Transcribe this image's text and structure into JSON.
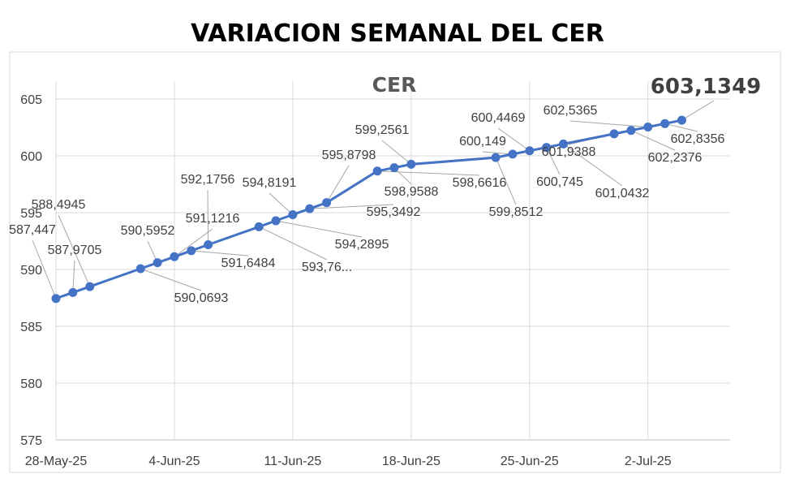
{
  "page_title": "VARIACION SEMANAL DEL CER",
  "chart_data": {
    "type": "line",
    "title": "CER",
    "xlabel": "",
    "ylabel": "",
    "ylim": [
      575,
      605
    ],
    "y_ticks": [
      575,
      580,
      585,
      590,
      595,
      600,
      605
    ],
    "x_ticks": [
      {
        "label": "28-May-25",
        "day": 0
      },
      {
        "label": "4-Jun-25",
        "day": 7
      },
      {
        "label": "11-Jun-25",
        "day": 14
      },
      {
        "label": "18-Jun-25",
        "day": 21
      },
      {
        "label": "25-Jun-25",
        "day": 28
      },
      {
        "label": "2-Jul-25",
        "day": 35
      }
    ],
    "grid": "horizontal",
    "series_color": "#4472C4",
    "last_value_label": "603,1349",
    "series": [
      {
        "name": "CER",
        "points": [
          {
            "day": 0,
            "y": 587.447,
            "label": "587,447"
          },
          {
            "day": 1,
            "y": 587.9705,
            "label": "587,9705"
          },
          {
            "day": 2,
            "y": 588.4945,
            "label": "588,4945"
          },
          {
            "day": 5,
            "y": 590.0693,
            "label": "590,0693"
          },
          {
            "day": 6,
            "y": 590.5952,
            "label": "590,5952"
          },
          {
            "day": 7,
            "y": 591.1216,
            "label": "591,1216"
          },
          {
            "day": 8,
            "y": 591.6484,
            "label": "591,6484"
          },
          {
            "day": 9,
            "y": 592.1756,
            "label": "592,1756"
          },
          {
            "day": 12,
            "y": 593.76,
            "label": "593,76..."
          },
          {
            "day": 13,
            "y": 594.2895,
            "label": "594,2895"
          },
          {
            "day": 14,
            "y": 594.8191,
            "label": "594,8191"
          },
          {
            "day": 15,
            "y": 595.3492,
            "label": "595,3492"
          },
          {
            "day": 16,
            "y": 595.8798,
            "label": "595,8798"
          },
          {
            "day": 19,
            "y": 598.6616,
            "label": "598,6616"
          },
          {
            "day": 20,
            "y": 598.9588,
            "label": "598,9588"
          },
          {
            "day": 21,
            "y": 599.2561,
            "label": "599,2561"
          },
          {
            "day": 26,
            "y": 599.8512,
            "label": "599,8512"
          },
          {
            "day": 27,
            "y": 600.149,
            "label": "600,149"
          },
          {
            "day": 28,
            "y": 600.4469,
            "label": "600,4469"
          },
          {
            "day": 29,
            "y": 600.745,
            "label": "600,745"
          },
          {
            "day": 30,
            "y": 601.0432,
            "label": "601,0432"
          },
          {
            "day": 33,
            "y": 601.9388,
            "label": "601,9388"
          },
          {
            "day": 34,
            "y": 602.2376,
            "label": "602,2376"
          },
          {
            "day": 35,
            "y": 602.5365,
            "label": "602,5365"
          },
          {
            "day": 36,
            "y": 602.8356,
            "label": "602,8356"
          },
          {
            "day": 37,
            "y": 603.1349,
            "label": ""
          }
        ]
      }
    ]
  }
}
